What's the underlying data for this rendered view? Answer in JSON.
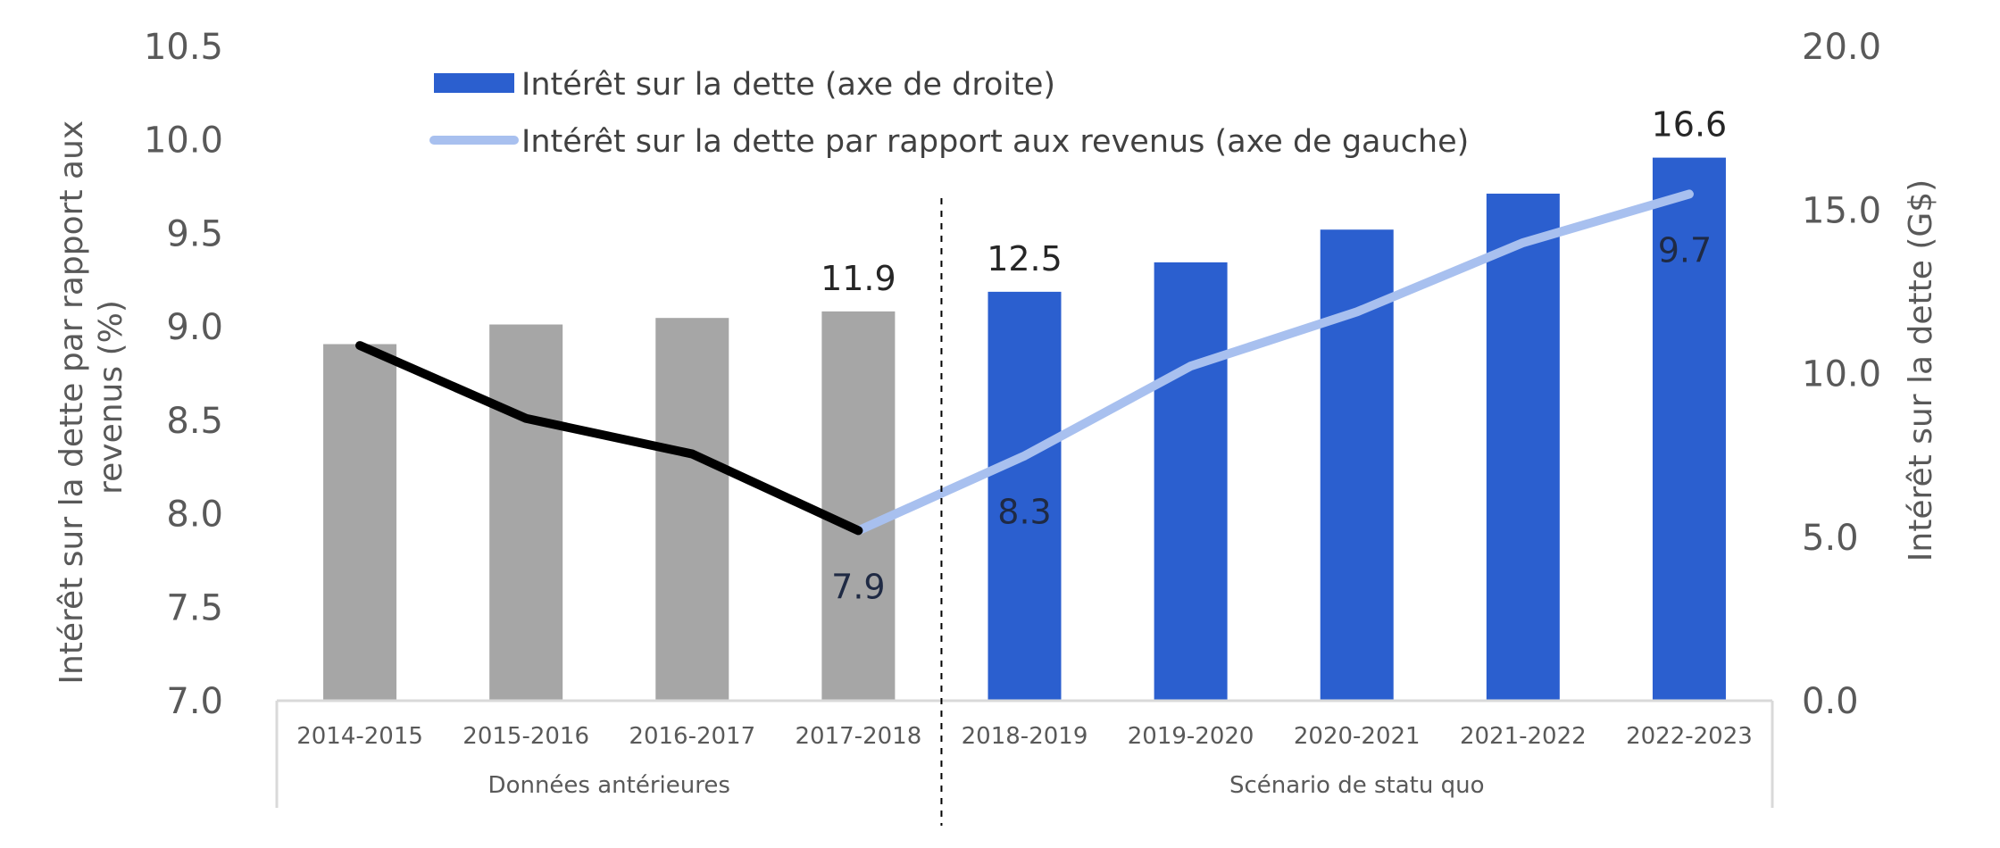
{
  "colors": {
    "historical_bar": "#a6a6a6",
    "projected_bar": "#2b5fcf",
    "historical_line": "#000000",
    "projected_line": "#a8c0ef",
    "axis": "#d9d9d9",
    "divider": "#000000"
  },
  "chart_data": {
    "type": "bar",
    "categories": [
      "2014-2015",
      "2015-2016",
      "2016-2017",
      "2017-2018",
      "2018-2019",
      "2019-2020",
      "2020-2021",
      "2021-2022",
      "2022-2023"
    ],
    "groups": [
      {
        "label": "Données antérieures",
        "categories": [
          "2014-2015",
          "2015-2016",
          "2016-2017",
          "2017-2018"
        ]
      },
      {
        "label": "Scénario de statu quo",
        "categories": [
          "2018-2019",
          "2019-2020",
          "2020-2021",
          "2021-2022",
          "2022-2023"
        ]
      }
    ],
    "series": [
      {
        "name": "Intérêt sur la dette (axe de droite)",
        "type": "bar",
        "axis": "right",
        "values": [
          10.9,
          11.5,
          11.7,
          11.9,
          12.5,
          13.4,
          14.4,
          15.5,
          16.6
        ],
        "labels": {
          "3": "11.9",
          "4": "12.5",
          "8": "16.6"
        }
      },
      {
        "name": "Intérêt sur la dette par rapport aux revenus (axe de gauche)",
        "type": "line",
        "axis": "left",
        "values": [
          8.9,
          8.51,
          8.32,
          7.91,
          8.31,
          8.79,
          9.08,
          9.45,
          9.71
        ],
        "labels": {
          "3": "7.9",
          "4": "8.3",
          "8": "9.7"
        }
      }
    ],
    "y_left": {
      "label": "Intérêt sur la dette par rapport aux revenus (%)",
      "label_lines": [
        "Intérêt sur la dette par rapport aux",
        "revenus (%)"
      ],
      "ylim": [
        7.0,
        10.5
      ],
      "ticks": [
        "7.0",
        "7.5",
        "8.0",
        "8.5",
        "9.0",
        "9.5",
        "10.0",
        "10.5"
      ]
    },
    "y_right": {
      "label": "Intérêt sur la dette (G$)",
      "ylim": [
        0.0,
        20.0
      ],
      "ticks": [
        "0.0",
        "5.0",
        "10.0",
        "15.0",
        "20.0"
      ]
    },
    "historical_count": 4,
    "legend_position": "top-left",
    "grid": false
  }
}
